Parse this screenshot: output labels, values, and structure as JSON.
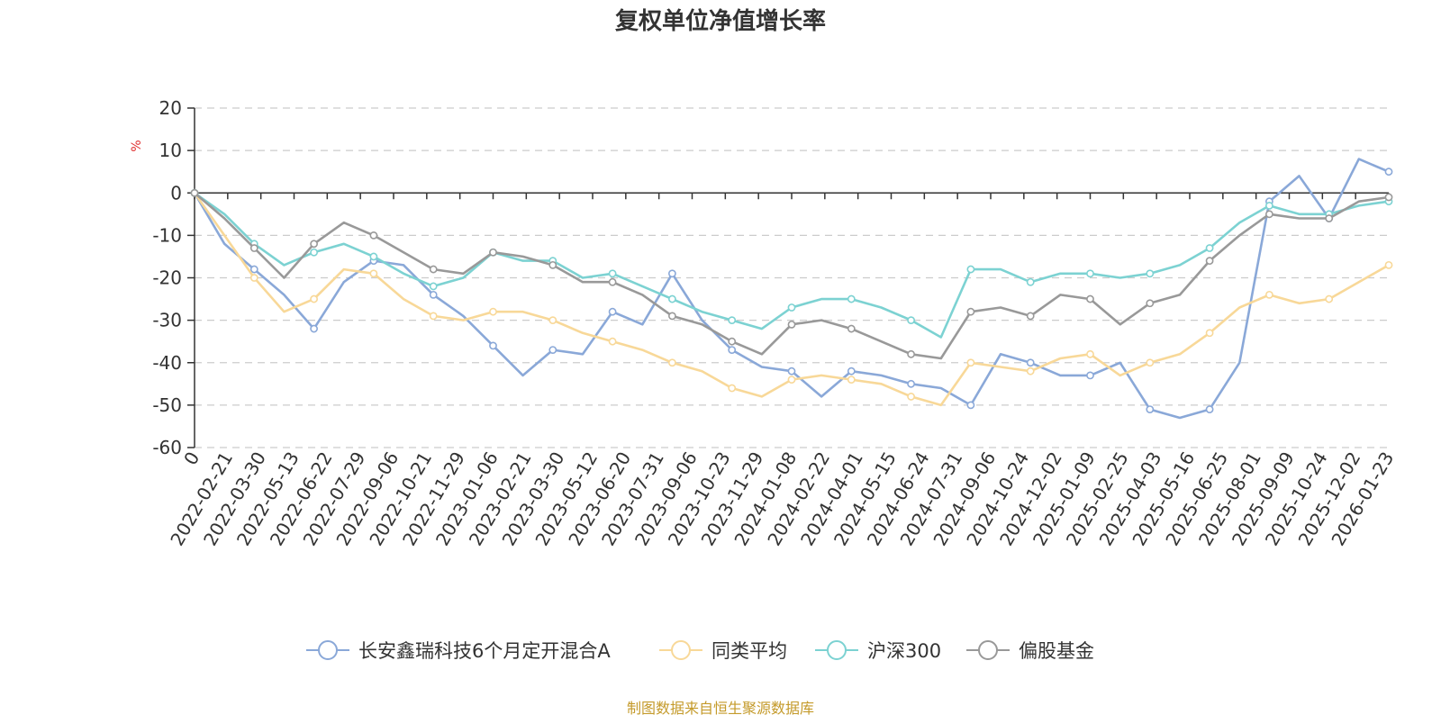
{
  "chart_data": {
    "type": "line",
    "title": "复权单位净值增长率",
    "ylabel": "%",
    "ylim": [
      -60,
      20
    ],
    "yticks": [
      20,
      10,
      0,
      -10,
      -20,
      -30,
      -40,
      -50,
      -60
    ],
    "xticks": [
      "0",
      "2022-02-21",
      "2022-03-30",
      "2022-05-13",
      "2022-06-22",
      "2022-07-29",
      "2022-09-06",
      "2022-10-21",
      "2022-11-29",
      "2023-01-06",
      "2023-02-21",
      "2023-03-30",
      "2023-05-12",
      "2023-06-20",
      "2023-07-31",
      "2023-09-06",
      "2023-10-23",
      "2023-11-29",
      "2024-01-08",
      "2024-02-22",
      "2024-04-01",
      "2024-05-15",
      "2024-06-24",
      "2024-07-31",
      "2024-09-06",
      "2024-10-24",
      "2024-12-02",
      "2025-01-09",
      "2025-02-25",
      "2025-04-03",
      "2025-05-16",
      "2025-06-25",
      "2025-08-01",
      "2025-09-09",
      "2025-10-24",
      "2025-12-02",
      "2026-01-23"
    ],
    "grid": "horizontal dashed",
    "legend_position": "bottom",
    "source": "制图数据来自恒生聚源数据库",
    "series": [
      {
        "name": "长安鑫瑞科技6个月定开混合A",
        "color": "#8aa8d8",
        "values": [
          0,
          -12,
          -18,
          -24,
          -32,
          -21,
          -16,
          -17,
          -24,
          -29,
          -36,
          -43,
          -37,
          -38,
          -28,
          -31,
          -19,
          -30,
          -37,
          -41,
          -42,
          -48,
          -42,
          -43,
          -45,
          -46,
          -50,
          -38,
          -40,
          -43,
          -43,
          -40,
          -51,
          -53,
          -51,
          -40,
          -2,
          4,
          -6,
          8,
          5
        ]
      },
      {
        "name": "同类平均",
        "color": "#f8d898",
        "values": [
          0,
          -10,
          -20,
          -28,
          -25,
          -18,
          -19,
          -25,
          -29,
          -30,
          -28,
          -28,
          -30,
          -33,
          -35,
          -37,
          -40,
          -42,
          -46,
          -48,
          -44,
          -43,
          -44,
          -45,
          -48,
          -50,
          -40,
          -41,
          -42,
          -39,
          -38,
          -43,
          -40,
          -38,
          -33,
          -27,
          -24,
          -26,
          -25,
          -21,
          -17
        ]
      },
      {
        "name": "沪深300",
        "color": "#7cd2d2",
        "values": [
          0,
          -5,
          -12,
          -17,
          -14,
          -12,
          -15,
          -19,
          -22,
          -20,
          -14,
          -16,
          -16,
          -20,
          -19,
          -22,
          -25,
          -28,
          -30,
          -32,
          -27,
          -25,
          -25,
          -27,
          -30,
          -34,
          -18,
          -18,
          -21,
          -19,
          -19,
          -20,
          -19,
          -17,
          -13,
          -7,
          -3,
          -5,
          -5,
          -3,
          -2
        ]
      },
      {
        "name": "偏股基金",
        "color": "#999999",
        "values": [
          0,
          -6,
          -13,
          -20,
          -12,
          -7,
          -10,
          -14,
          -18,
          -19,
          -14,
          -15,
          -17,
          -21,
          -21,
          -24,
          -29,
          -31,
          -35,
          -38,
          -31,
          -30,
          -32,
          -35,
          -38,
          -39,
          -28,
          -27,
          -29,
          -24,
          -25,
          -31,
          -26,
          -24,
          -16,
          -10,
          -5,
          -6,
          -6,
          -2,
          -1
        ]
      }
    ]
  },
  "legend": [
    {
      "label": "长安鑫瑞科技6个月定开混合A",
      "color": "#8aa8d8"
    },
    {
      "label": "同类平均",
      "color": "#f8d898"
    },
    {
      "label": "沪深300",
      "color": "#7cd2d2"
    },
    {
      "label": "偏股基金",
      "color": "#999999"
    }
  ]
}
